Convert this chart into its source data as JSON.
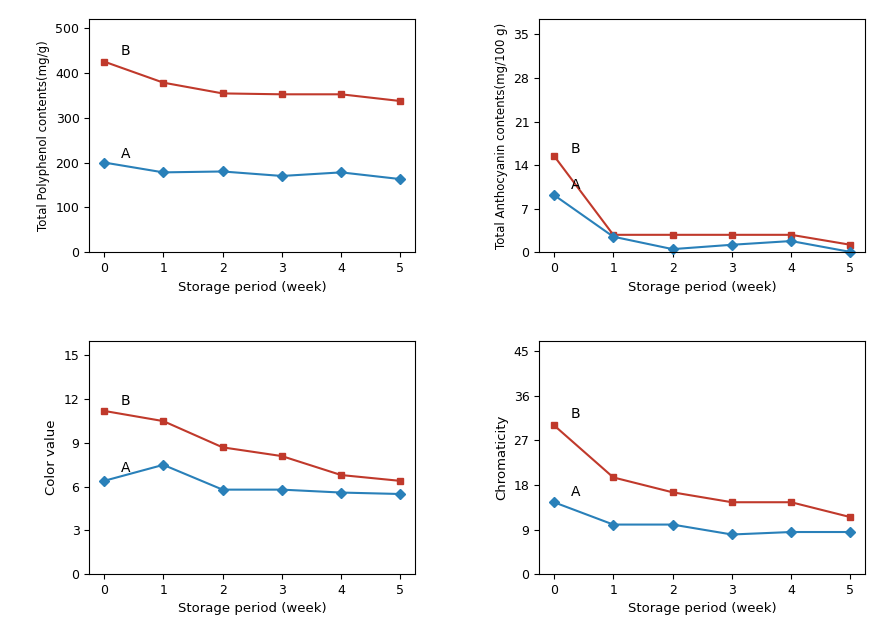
{
  "x": [
    0,
    1,
    2,
    3,
    4,
    5
  ],
  "polyphenol_B": [
    425,
    378,
    354,
    352,
    352,
    337
  ],
  "polyphenol_A": [
    200,
    178,
    180,
    170,
    178,
    163
  ],
  "anthocyanin_B": [
    15.5,
    2.8,
    2.8,
    2.8,
    2.8,
    1.2
  ],
  "anthocyanin_A": [
    9.2,
    2.5,
    0.5,
    1.2,
    1.8,
    0.05
  ],
  "color_B": [
    11.2,
    10.5,
    8.7,
    8.1,
    6.8,
    6.4
  ],
  "color_A": [
    6.4,
    7.5,
    5.8,
    5.8,
    5.6,
    5.5
  ],
  "chroma_B": [
    30.0,
    19.5,
    16.5,
    14.5,
    14.5,
    11.5
  ],
  "chroma_A": [
    14.5,
    10.0,
    10.0,
    8.0,
    8.5,
    8.5
  ],
  "color_red": "#C0392B",
  "color_blue": "#2980B9",
  "xlabel": "Storage period (week)",
  "ylabel_polyphenol": "Total Polyphenol contents(mg/g)",
  "ylabel_anthocyanin": "Total Anthocyanin contents(mg/100 g)",
  "ylabel_color": "Color value",
  "ylabel_chroma": "Chromaticity",
  "yticks_polyphenol": [
    0,
    100,
    200,
    300,
    400,
    500
  ],
  "yticks_anthocyanin": [
    0,
    7,
    14,
    21,
    28,
    35
  ],
  "yticks_color": [
    0,
    3,
    6,
    9,
    12,
    15
  ],
  "yticks_chroma": [
    0,
    9,
    18,
    27,
    36,
    45
  ],
  "label_A": "A",
  "label_B": "B"
}
